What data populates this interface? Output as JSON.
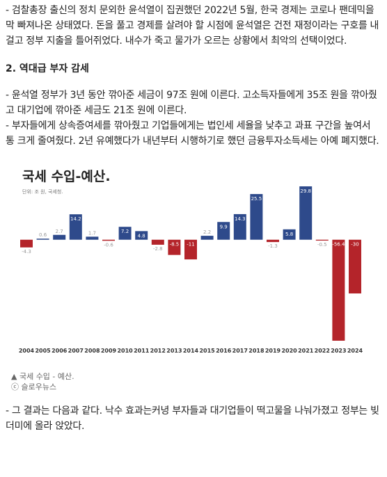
{
  "article": {
    "intro": "- 검찰총장 출신의 정치 문외한 윤석열이 집권했던 2022년 5월, 한국 경제는 코로나 팬데믹을 막 빠져나온 상태였다. 돈을 풀고 경제를 살려야 할 시점에 윤석열은 건전 재정이라는 구호를 내걸고 정부 지출을 틀어쥐었다. 내수가 죽고 물가가 오르는 상황에서 최악의 선택이었다.",
    "heading": "2. 역대급 부자 감세",
    "points": [
      "- 윤석열 정부가 3년 동안 깎아준 세금이 97조 원에 이른다. 고소득자들에게 35조 원을 깎아줬고 대기업에 깎아준 세금도 21조 원에 이른다.",
      "- 부자들에게 상속증여세를 깎아줬고 기업들에게는 법인세 세율을 낮추고 과표 구간을 높여서 통 크게 줄여줬다. 2년 유예했다가 내년부터 시행하기로 했던 금융투자소득세는 아예 폐지했다."
    ],
    "caption": [
      "▲ 국세 수입 - 예산.",
      "ⓒ 슬로우뉴스"
    ],
    "conclusion": "- 그 결과는 다음과 같다. 낙수 효과는커녕 부자들과 대기업들이 떡고물을 나눠가졌고 정부는 빚더미에 올라 앉았다."
  },
  "chart_data": {
    "type": "bar",
    "title": "국세 수입-예산.",
    "subtitle": "단위: 조 원, 국세청.",
    "categories": [
      "2004",
      "2005",
      "2006",
      "2007",
      "2008",
      "2009",
      "2010",
      "2011",
      "2012",
      "2013",
      "2014",
      "2015",
      "2016",
      "2017",
      "2018",
      "2019",
      "2020",
      "2021",
      "2022",
      "2023",
      "2024"
    ],
    "values": [
      -4.3,
      0.6,
      2.7,
      14.2,
      1.7,
      -0.6,
      7.2,
      4.8,
      -2.8,
      -8.5,
      -11,
      2.2,
      9.9,
      14.3,
      25.5,
      -1.3,
      5.8,
      29.8,
      -0.5,
      -56.4,
      -30
    ],
    "positive_color": "#2e4a8b",
    "negative_color": "#b4242a"
  }
}
